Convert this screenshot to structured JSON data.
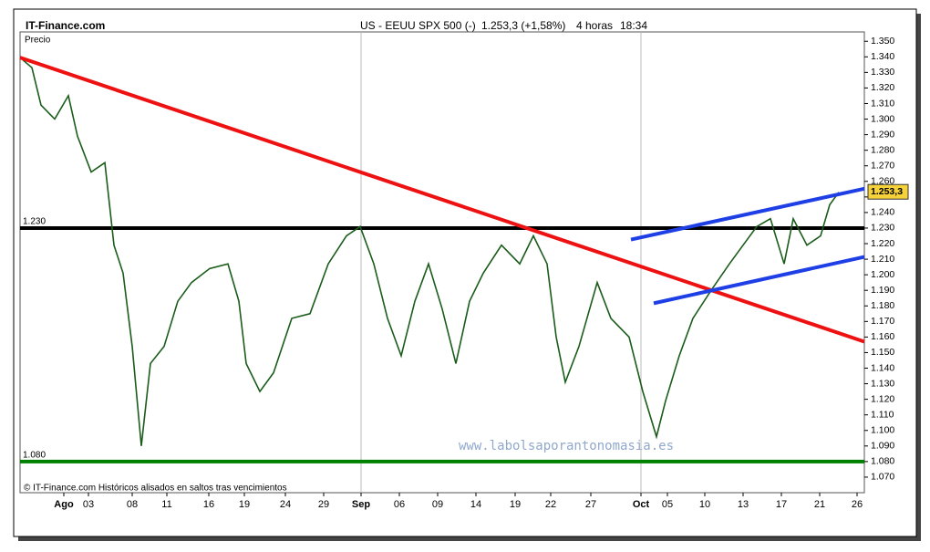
{
  "chart_data": {
    "type": "line",
    "site": "IT-Finance.com",
    "title": "US - EEUU SPX 500 (-)",
    "quote": "1.253,3 (+1,58%)",
    "interval": "4 horas",
    "time": "18:34",
    "y_label": "Precio",
    "footer": "© IT-Finance.com Históricos alisados en saltos tras vencimientos",
    "watermark": "www.labolsaporantonomasia.es",
    "xlim": [
      0,
      926
    ],
    "ylim": [
      1.06,
      1.356
    ],
    "xticks": [
      {
        "value": 48,
        "label": "Ago"
      },
      {
        "value": 75,
        "label": "03"
      },
      {
        "value": 123,
        "label": "08"
      },
      {
        "value": 161,
        "label": "11"
      },
      {
        "value": 207,
        "label": "16"
      },
      {
        "value": 246,
        "label": "19"
      },
      {
        "value": 291,
        "label": "24"
      },
      {
        "value": 333,
        "label": "29"
      },
      {
        "value": 374,
        "label": "Sep"
      },
      {
        "value": 416,
        "label": "06"
      },
      {
        "value": 458,
        "label": "09"
      },
      {
        "value": 500,
        "label": "14"
      },
      {
        "value": 543,
        "label": "19"
      },
      {
        "value": 582,
        "label": "22"
      },
      {
        "value": 626,
        "label": "27"
      },
      {
        "value": 681,
        "label": "Oct"
      },
      {
        "value": 710,
        "label": "05"
      },
      {
        "value": 751,
        "label": "10"
      },
      {
        "value": 793,
        "label": "13"
      },
      {
        "value": 835,
        "label": "17"
      },
      {
        "value": 877,
        "label": "21"
      },
      {
        "value": 918,
        "label": "26"
      }
    ],
    "month_lines": [
      374,
      681
    ],
    "yticks": [
      {
        "value": 1.35,
        "label": "1.350"
      },
      {
        "value": 1.34,
        "label": "1.340"
      },
      {
        "value": 1.33,
        "label": "1.330"
      },
      {
        "value": 1.32,
        "label": "1.320"
      },
      {
        "value": 1.31,
        "label": "1.310"
      },
      {
        "value": 1.3,
        "label": "1.300"
      },
      {
        "value": 1.29,
        "label": "1.290"
      },
      {
        "value": 1.28,
        "label": "1.280"
      },
      {
        "value": 1.27,
        "label": "1.270"
      },
      {
        "value": 1.26,
        "label": "1.260"
      },
      {
        "value": 1.25,
        "label": "1.250"
      },
      {
        "value": 1.24,
        "label": "1.240"
      },
      {
        "value": 1.23,
        "label": "1.230"
      },
      {
        "value": 1.22,
        "label": "1.220"
      },
      {
        "value": 1.21,
        "label": "1.210"
      },
      {
        "value": 1.2,
        "label": "1.200"
      },
      {
        "value": 1.19,
        "label": "1.190"
      },
      {
        "value": 1.18,
        "label": "1.180"
      },
      {
        "value": 1.17,
        "label": "1.170"
      },
      {
        "value": 1.16,
        "label": "1.160"
      },
      {
        "value": 1.15,
        "label": "1.150"
      },
      {
        "value": 1.14,
        "label": "1.140"
      },
      {
        "value": 1.13,
        "label": "1.130"
      },
      {
        "value": 1.12,
        "label": "1.120"
      },
      {
        "value": 1.11,
        "label": "1.110"
      },
      {
        "value": 1.1,
        "label": "1.100"
      },
      {
        "value": 1.09,
        "label": "1.090"
      },
      {
        "value": 1.08,
        "label": "1.080"
      },
      {
        "value": 1.07,
        "label": "1.070"
      }
    ],
    "series": [
      {
        "color": "#1a5c1a",
        "x": [
          3,
          13,
          23,
          38,
          53,
          63,
          78,
          93,
          103,
          113,
          123,
          133,
          143,
          158,
          173,
          188,
          208,
          228,
          240,
          248,
          263,
          278,
          298,
          318,
          338,
          358,
          373,
          388,
          403,
          418,
          433,
          448,
          463,
          478,
          493,
          508,
          528,
          548,
          563,
          578,
          588,
          598,
          613,
          633,
          648,
          668,
          683,
          698,
          708,
          723,
          738,
          758,
          778,
          793,
          808,
          823,
          838,
          848,
          863,
          878,
          888,
          898
        ],
        "values": [
          1.338,
          1.333,
          1.309,
          1.3,
          1.315,
          1.289,
          1.266,
          1.272,
          1.219,
          1.201,
          1.154,
          1.09,
          1.143,
          1.154,
          1.183,
          1.195,
          1.204,
          1.207,
          1.183,
          1.143,
          1.125,
          1.137,
          1.172,
          1.175,
          1.207,
          1.225,
          1.231,
          1.207,
          1.172,
          1.148,
          1.183,
          1.207,
          1.178,
          1.143,
          1.183,
          1.201,
          1.219,
          1.207,
          1.225,
          1.207,
          1.16,
          1.131,
          1.154,
          1.195,
          1.172,
          1.16,
          1.125,
          1.096,
          1.119,
          1.148,
          1.172,
          1.19,
          1.207,
          1.219,
          1.231,
          1.236,
          1.207,
          1.236,
          1.219,
          1.225,
          1.245,
          1.253
        ]
      }
    ],
    "levels": [
      {
        "value": 1.23,
        "label": "1.230",
        "color": "#000000"
      },
      {
        "value": 1.08,
        "label": "1.080",
        "color": "#008000"
      }
    ],
    "trendlines": [
      {
        "color": "#ee1111",
        "x": [
          0,
          926
        ],
        "y": [
          1.3395,
          1.157
        ]
      },
      {
        "color": "#1f3fe6",
        "x": [
          670,
          926
        ],
        "y": [
          1.2226,
          1.2553
        ]
      },
      {
        "color": "#1f3fe6",
        "x": [
          695,
          926
        ],
        "y": [
          1.1817,
          1.2115
        ]
      }
    ],
    "last_price": {
      "value": 1.2533,
      "label": "1.253,3"
    },
    "grid": false
  }
}
